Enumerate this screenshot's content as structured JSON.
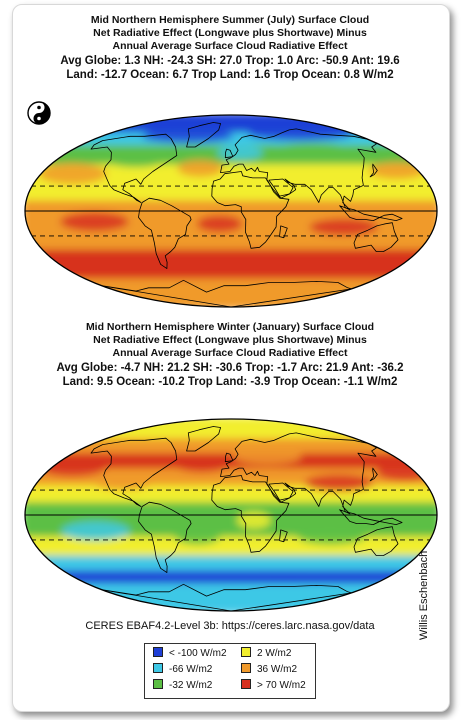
{
  "panels": [
    {
      "title": [
        "Mid Northern Hemisphere Summer (July) Surface Cloud",
        "Net Radiative Effect (Longwave plus Shortwave) Minus",
        "Annual Average Surface Cloud Radiative Effect"
      ],
      "stats_line1": "Avg Globe: 1.3  NH: -24.3  SH: 27.0  Trop: 1.0 Arc: -50.9  Ant: 19.6",
      "stats_line2": "Land: -12.7 Ocean: 6.7 Trop Land: 1.6 Trop Ocean: 0.8 W/m2",
      "pattern": "summer"
    },
    {
      "title": [
        "Mid Northern Hemisphere Winter (January) Surface Cloud",
        "Net Radiative Effect (Longwave plus Shortwave) Minus",
        "Annual Average Surface Cloud Radiative Effect"
      ],
      "stats_line1": "Avg Globe: -4.7  NH: 21.2  SH: -30.6  Trop: -1.7 Arc: 21.9  Ant: -36.2",
      "stats_line2": "Land: 9.5 Ocean: -10.2 Trop Land: -3.9 Trop Ocean: -1.1 W/m2",
      "pattern": "winter"
    }
  ],
  "source": "CERES EBAF4.2-Level 3b: https://ceres.larc.nasa.gov/data",
  "credit": "Willis Eschenbach",
  "legend": [
    {
      "label": "< -100 W/m2",
      "color": "#1f3fd6"
    },
    {
      "label": "2 W/m2",
      "color": "#f2ee2e"
    },
    {
      "label": "-66 W/m2",
      "color": "#3ec8e6"
    },
    {
      "label": "36 W/m2",
      "color": "#f09a2c"
    },
    {
      "label": "-32 W/m2",
      "color": "#5cbf45"
    },
    {
      "label": "> 70 W/m2",
      "color": "#d7301f"
    }
  ],
  "colors": {
    "blue": "#1f3fd6",
    "cyan": "#3ec8e6",
    "green": "#5cbf45",
    "yellow": "#f2ee2e",
    "orange": "#f09a2c",
    "red": "#d7301f"
  }
}
